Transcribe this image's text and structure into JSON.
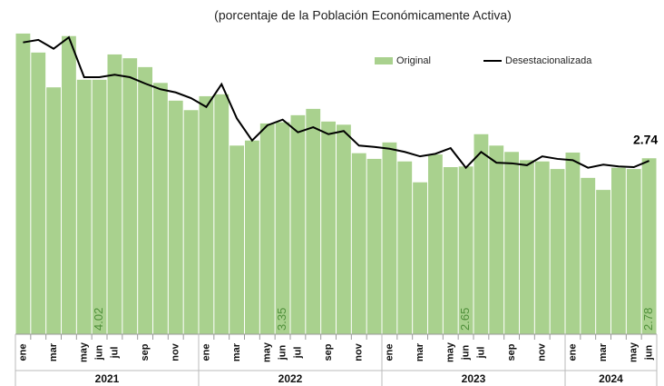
{
  "chart_data": {
    "type": "bar",
    "title": "(porcentaje de la Población Económicamente Activa)",
    "categories": [
      "ene",
      null,
      "mar",
      null,
      "may",
      "jun",
      "jul",
      null,
      "sep",
      null,
      "nov",
      null,
      "ene",
      null,
      "mar",
      null,
      "may",
      "jun",
      "jul",
      null,
      "sep",
      null,
      "nov",
      null,
      "ene",
      null,
      "mar",
      null,
      "may",
      "jun",
      "jul",
      null,
      "sep",
      null,
      "nov",
      null,
      "ene",
      null,
      "mar",
      null,
      "may",
      "jun"
    ],
    "x_groups": [
      {
        "label": "2021",
        "months": 12
      },
      {
        "label": "2022",
        "months": 12
      },
      {
        "label": "2023",
        "months": 12
      },
      {
        "label": "2024",
        "months": 6
      }
    ],
    "ylim": [
      0,
      5.28
    ],
    "legend": "top-right",
    "series": [
      {
        "name": "Original",
        "type": "bar",
        "color": "#a9d18e",
        "values": [
          4.75,
          4.45,
          3.9,
          4.71,
          4.02,
          4.02,
          4.42,
          4.36,
          4.22,
          3.97,
          3.69,
          3.54,
          3.76,
          3.79,
          2.98,
          3.06,
          3.33,
          3.35,
          3.46,
          3.56,
          3.36,
          3.31,
          2.86,
          2.77,
          3.03,
          2.73,
          2.4,
          2.84,
          2.64,
          2.65,
          3.16,
          2.98,
          2.88,
          2.75,
          2.73,
          2.61,
          2.87,
          2.47,
          2.28,
          2.63,
          2.61,
          2.78
        ],
        "value_labels": [
          null,
          null,
          null,
          null,
          null,
          "4.02",
          null,
          null,
          null,
          null,
          null,
          null,
          null,
          null,
          null,
          null,
          null,
          "3.35",
          null,
          null,
          null,
          null,
          null,
          null,
          null,
          null,
          null,
          null,
          null,
          "2.65",
          null,
          null,
          null,
          null,
          null,
          null,
          null,
          null,
          null,
          null,
          null,
          "2.78"
        ]
      },
      {
        "name": "Desestacionalizada",
        "type": "line",
        "color": "#000000",
        "values": [
          4.61,
          4.65,
          4.51,
          4.69,
          4.06,
          4.06,
          4.1,
          4.06,
          3.96,
          3.87,
          3.82,
          3.73,
          3.59,
          3.95,
          3.41,
          3.06,
          3.3,
          3.39,
          3.19,
          3.27,
          3.16,
          3.21,
          2.98,
          2.96,
          2.93,
          2.88,
          2.81,
          2.85,
          2.94,
          2.63,
          2.88,
          2.71,
          2.7,
          2.67,
          2.81,
          2.77,
          2.75,
          2.63,
          2.68,
          2.65,
          2.64,
          2.74
        ],
        "value_labels": [
          null,
          null,
          null,
          null,
          null,
          null,
          null,
          null,
          null,
          null,
          null,
          null,
          null,
          null,
          null,
          null,
          null,
          null,
          null,
          null,
          null,
          null,
          null,
          null,
          null,
          null,
          null,
          null,
          null,
          null,
          null,
          null,
          null,
          null,
          null,
          null,
          null,
          null,
          null,
          null,
          null,
          "2.74"
        ]
      }
    ]
  }
}
